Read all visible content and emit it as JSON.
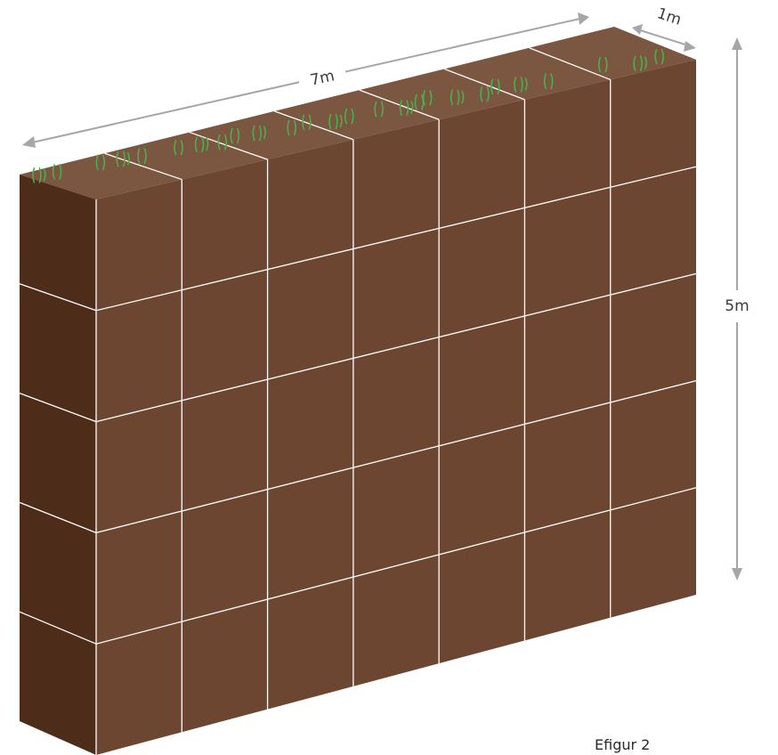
{
  "figure": {
    "caption": "Efigur 2",
    "length_label": "7m",
    "depth_label": "1m",
    "height_label": "5m"
  },
  "block": {
    "columns": 7,
    "rows": 5,
    "colors": {
      "front": "#6d4631",
      "side": "#4d2d1a",
      "top": "#7b5640",
      "grid": "#ffffff",
      "grass": "#4cae4c",
      "dimension_arrow": "#a6a6a6"
    }
  }
}
